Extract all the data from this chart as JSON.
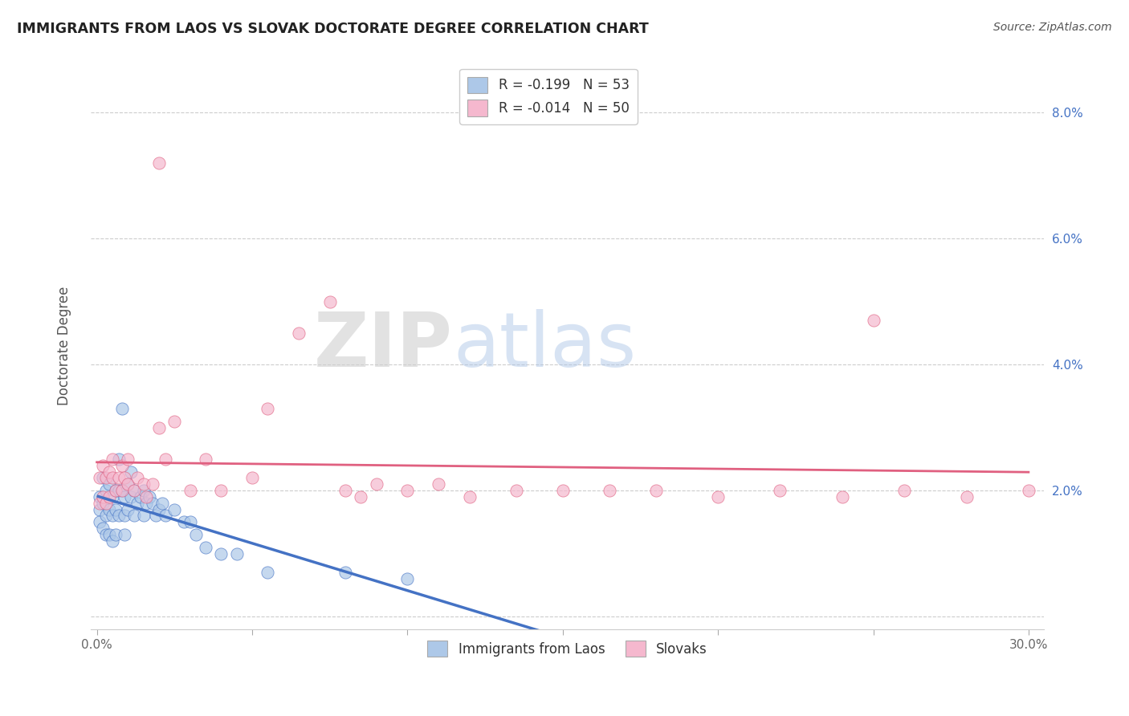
{
  "title": "IMMIGRANTS FROM LAOS VS SLOVAK DOCTORATE DEGREE CORRELATION CHART",
  "source": "Source: ZipAtlas.com",
  "ylabel": "Doctorate Degree",
  "xlim": [
    -0.002,
    0.305
  ],
  "ylim": [
    -0.002,
    0.088
  ],
  "xticks": [
    0.0,
    0.05,
    0.1,
    0.15,
    0.2,
    0.25,
    0.3
  ],
  "xtick_labels": [
    "0.0%",
    "",
    "",
    "",
    "",
    "",
    "30.0%"
  ],
  "yticks": [
    0.0,
    0.02,
    0.04,
    0.06,
    0.08
  ],
  "ytick_labels_left": [
    "",
    "",
    "",
    "",
    ""
  ],
  "ytick_labels_right": [
    "",
    "2.0%",
    "4.0%",
    "6.0%",
    "8.0%"
  ],
  "legend_r1": "R = -0.199",
  "legend_n1": "N = 53",
  "legend_r2": "R = -0.014",
  "legend_n2": "N = 50",
  "color_laos": "#adc8e8",
  "color_slovak": "#f5b8ce",
  "line_color_laos": "#4472c4",
  "line_color_slovak": "#e06080",
  "watermark_zip": "ZIP",
  "watermark_atlas": "atlas",
  "laos_x": [
    0.001,
    0.001,
    0.001,
    0.002,
    0.002,
    0.002,
    0.003,
    0.003,
    0.003,
    0.004,
    0.004,
    0.004,
    0.005,
    0.005,
    0.005,
    0.006,
    0.006,
    0.006,
    0.007,
    0.007,
    0.007,
    0.008,
    0.008,
    0.009,
    0.009,
    0.009,
    0.01,
    0.01,
    0.011,
    0.011,
    0.012,
    0.012,
    0.013,
    0.014,
    0.015,
    0.015,
    0.016,
    0.017,
    0.018,
    0.019,
    0.02,
    0.021,
    0.022,
    0.025,
    0.028,
    0.03,
    0.032,
    0.035,
    0.04,
    0.045,
    0.055,
    0.08,
    0.1
  ],
  "laos_y": [
    0.019,
    0.017,
    0.015,
    0.022,
    0.018,
    0.014,
    0.02,
    0.016,
    0.013,
    0.021,
    0.017,
    0.013,
    0.019,
    0.016,
    0.012,
    0.02,
    0.017,
    0.013,
    0.02,
    0.016,
    0.025,
    0.033,
    0.02,
    0.019,
    0.016,
    0.013,
    0.021,
    0.017,
    0.023,
    0.019,
    0.02,
    0.016,
    0.018,
    0.019,
    0.02,
    0.016,
    0.018,
    0.019,
    0.018,
    0.016,
    0.017,
    0.018,
    0.016,
    0.017,
    0.015,
    0.015,
    0.013,
    0.011,
    0.01,
    0.01,
    0.007,
    0.007,
    0.006
  ],
  "slovak_x": [
    0.001,
    0.001,
    0.002,
    0.002,
    0.003,
    0.003,
    0.004,
    0.004,
    0.005,
    0.005,
    0.006,
    0.007,
    0.008,
    0.008,
    0.009,
    0.01,
    0.01,
    0.012,
    0.013,
    0.015,
    0.016,
    0.018,
    0.02,
    0.022,
    0.025,
    0.03,
    0.035,
    0.04,
    0.05,
    0.055,
    0.065,
    0.075,
    0.08,
    0.085,
    0.09,
    0.1,
    0.11,
    0.12,
    0.135,
    0.15,
    0.165,
    0.18,
    0.2,
    0.22,
    0.24,
    0.26,
    0.28,
    0.3,
    0.25,
    0.02
  ],
  "slovak_y": [
    0.022,
    0.018,
    0.024,
    0.019,
    0.022,
    0.018,
    0.023,
    0.019,
    0.022,
    0.025,
    0.02,
    0.022,
    0.024,
    0.02,
    0.022,
    0.021,
    0.025,
    0.02,
    0.022,
    0.021,
    0.019,
    0.021,
    0.03,
    0.025,
    0.031,
    0.02,
    0.025,
    0.02,
    0.022,
    0.033,
    0.045,
    0.05,
    0.02,
    0.019,
    0.021,
    0.02,
    0.021,
    0.019,
    0.02,
    0.02,
    0.02,
    0.02,
    0.019,
    0.02,
    0.019,
    0.02,
    0.019,
    0.02,
    0.047,
    0.072
  ]
}
